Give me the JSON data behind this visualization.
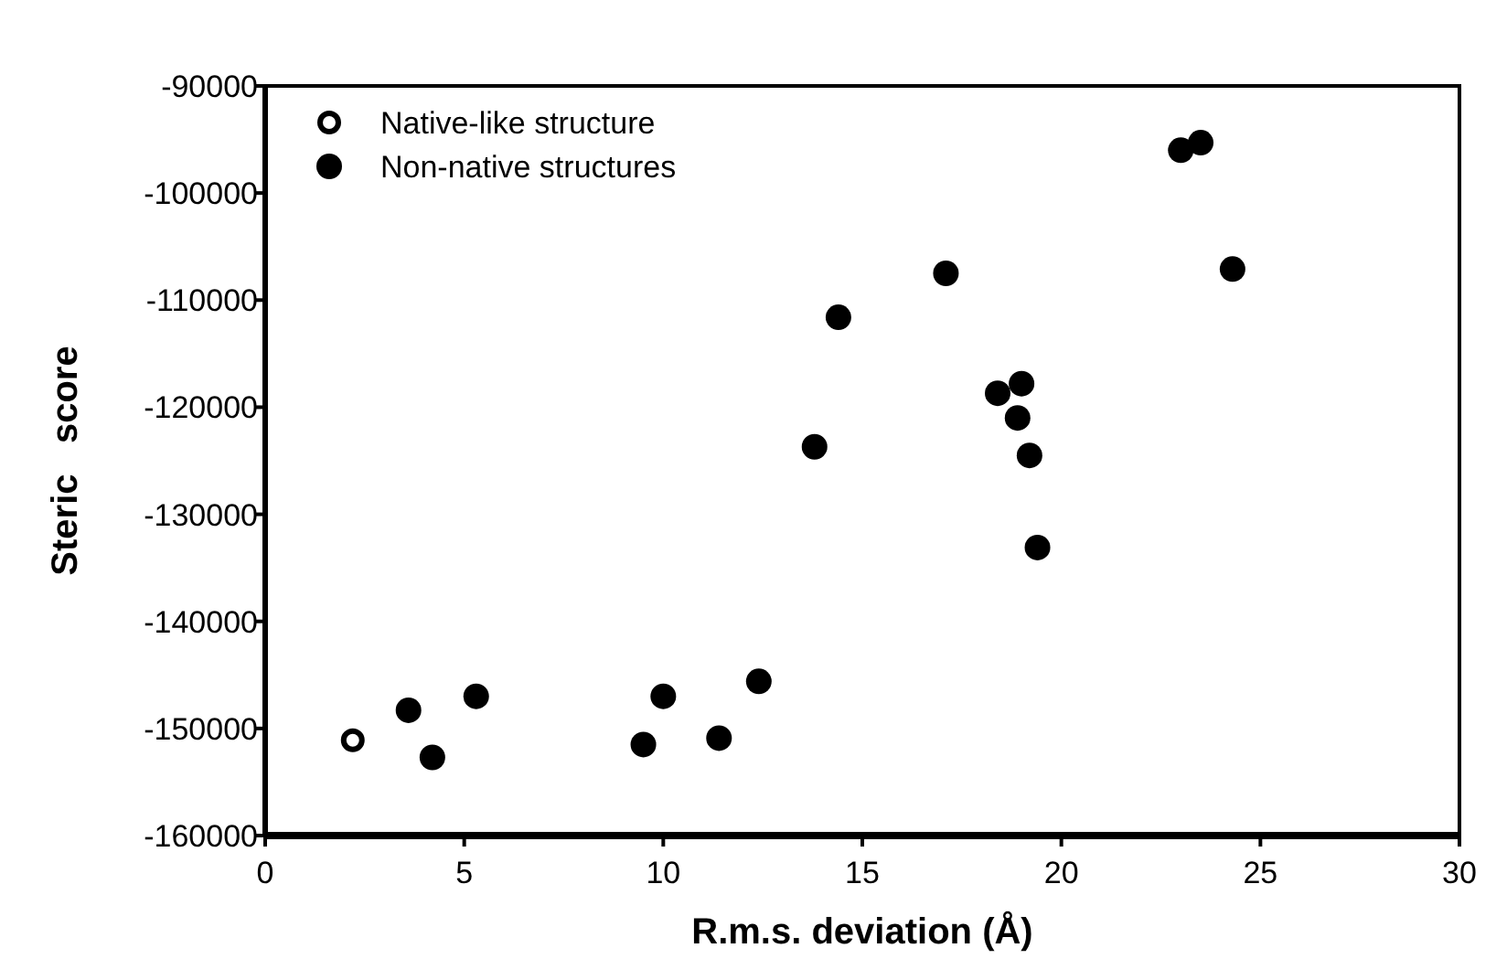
{
  "chart_data": {
    "type": "scatter",
    "xlabel": "R.m.s. deviation (Å)",
    "ylabel": "Steric   score",
    "xlim": [
      0,
      30
    ],
    "xticks": [
      0,
      5,
      10,
      15,
      20,
      25,
      30
    ],
    "ylim": [
      -160000,
      -90000
    ],
    "yticks": [
      -160000,
      -150000,
      -140000,
      -130000,
      -120000,
      -110000,
      -100000,
      -90000
    ],
    "legend": "top left",
    "grid": false,
    "series": [
      {
        "name": "Native-like structure",
        "color": "#000000",
        "marker": "open-circle",
        "x": [
          2.2
        ],
        "values": [
          -151100
        ]
      },
      {
        "name": "Non-native structures",
        "color": "#000000",
        "marker": "circle",
        "x": [
          3.6,
          4.2,
          5.3,
          9.5,
          10.0,
          11.4,
          12.4,
          13.8,
          14.4,
          17.1,
          18.4,
          19.0,
          18.9,
          19.2,
          19.4,
          23.0,
          23.5,
          24.3
        ],
        "values": [
          -148300,
          -152700,
          -147000,
          -151500,
          -147000,
          -150900,
          -145600,
          -123700,
          -111600,
          -107500,
          -118700,
          -117800,
          -121000,
          -124500,
          -133100,
          -96000,
          -95300,
          -107100
        ]
      }
    ]
  }
}
